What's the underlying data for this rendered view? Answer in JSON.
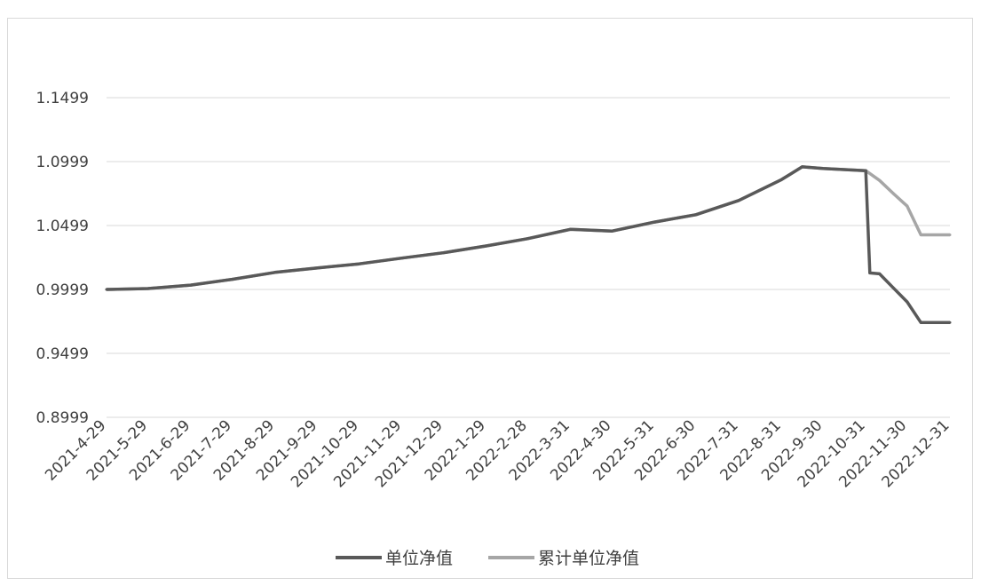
{
  "chart_data": {
    "type": "line",
    "title": "",
    "xlabel": "",
    "ylabel": "",
    "ylim": [
      0.8999,
      1.1749
    ],
    "yticks": [
      "0.8999",
      "0.9499",
      "0.9999",
      "1.0499",
      "1.0999",
      "1.1499"
    ],
    "ytick_values": [
      0.8999,
      0.9499,
      0.9999,
      1.0499,
      1.0999,
      1.1499
    ],
    "categories": [
      "2021-4-29",
      "2021-5-29",
      "2021-6-29",
      "2021-7-29",
      "2021-8-29",
      "2021-9-29",
      "2021-10-29",
      "2021-11-29",
      "2021-12-29",
      "2022-1-29",
      "2022-2-28",
      "2022-3-31",
      "2022-4-30",
      "2022-5-31",
      "2022-6-30",
      "2022-7-31",
      "2022-8-31",
      "2022-9-30",
      "2022-10-31",
      "2022-11-30",
      "2022-12-31"
    ],
    "grid": true,
    "legend_position": "bottom",
    "series": [
      {
        "name": "单位净值",
        "color": "#595959",
        "x": [
          "2021-4-29",
          "2021-5-29",
          "2021-6-29",
          "2021-7-29",
          "2021-8-29",
          "2021-9-29",
          "2021-10-29",
          "2021-11-29",
          "2021-12-29",
          "2022-1-29",
          "2022-2-28",
          "2022-3-31",
          "2022-4-30",
          "2022-5-31",
          "2022-6-30",
          "2022-7-31",
          "2022-8-31",
          "2022-9-15",
          "2022-9-30",
          "2022-10-31",
          "2022-11-3",
          "2022-11-10",
          "2022-11-20",
          "2022-11-30",
          "2022-12-10",
          "2022-12-31"
        ],
        "values": [
          0.9999,
          1.0006,
          1.0033,
          1.0078,
          1.0132,
          1.0168,
          1.0199,
          1.0244,
          1.0286,
          1.0339,
          1.0396,
          1.0469,
          1.0455,
          1.0526,
          1.0584,
          1.0695,
          1.0858,
          1.0958,
          1.0945,
          1.0928,
          1.0128,
          1.0121,
          1.0011,
          0.9902,
          0.974,
          0.974
        ]
      },
      {
        "name": "累计单位净值",
        "color": "#a6a6a6",
        "x": [
          "2021-4-29",
          "2021-5-29",
          "2021-6-29",
          "2021-7-29",
          "2021-8-29",
          "2021-9-29",
          "2021-10-29",
          "2021-11-29",
          "2021-12-29",
          "2022-1-29",
          "2022-2-28",
          "2022-3-31",
          "2022-4-30",
          "2022-5-31",
          "2022-6-30",
          "2022-7-31",
          "2022-8-31",
          "2022-9-15",
          "2022-9-30",
          "2022-10-31",
          "2022-11-10",
          "2022-11-20",
          "2022-11-30",
          "2022-12-10",
          "2022-12-31"
        ],
        "values": [
          0.9999,
          1.0006,
          1.0033,
          1.0078,
          1.0132,
          1.0168,
          1.0199,
          1.0244,
          1.0286,
          1.0339,
          1.0396,
          1.0469,
          1.0455,
          1.0526,
          1.0584,
          1.0695,
          1.0858,
          1.0958,
          1.0945,
          1.0928,
          1.0852,
          1.0749,
          1.0651,
          1.0426,
          1.0426
        ]
      }
    ]
  }
}
